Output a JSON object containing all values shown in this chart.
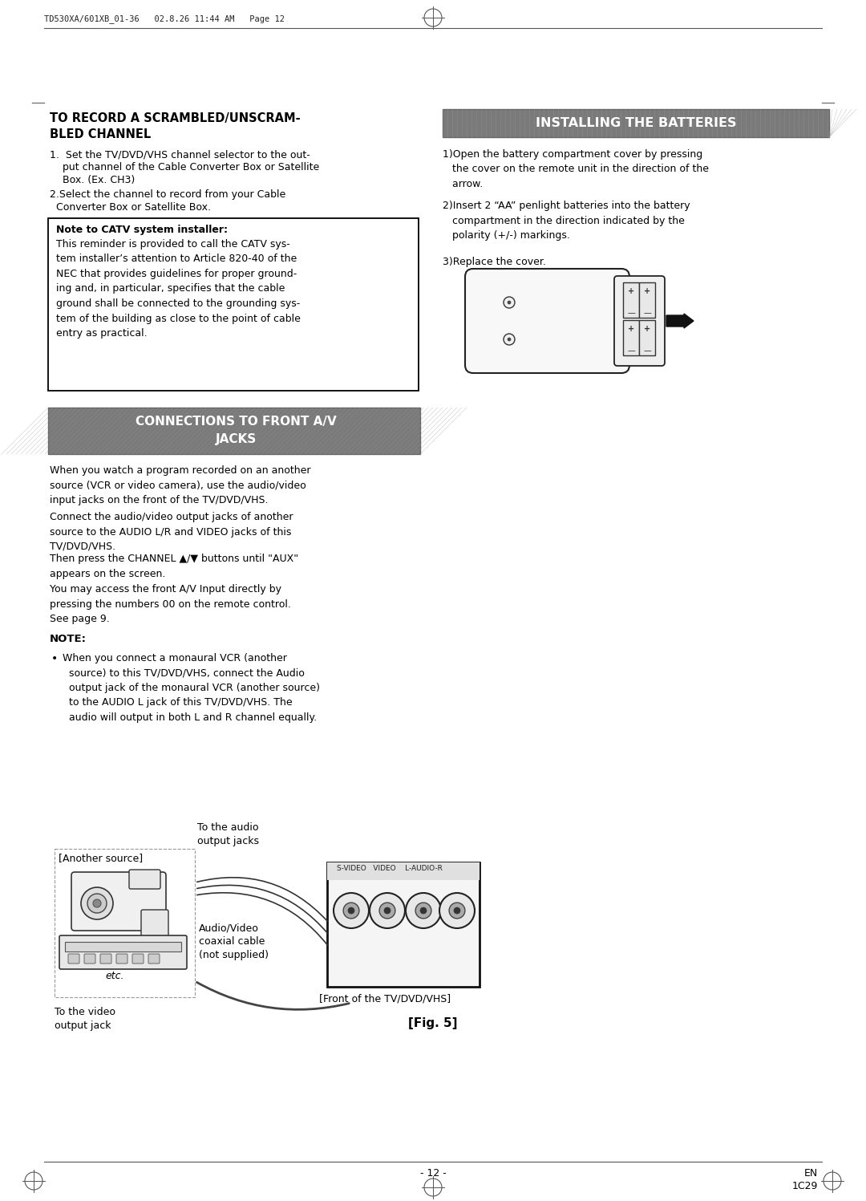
{
  "page_header": "TD530XA/601XB_01-36   02.8.26 11:44 AM   Page 12",
  "background_color": "#ffffff",
  "page_num": "- 12 -",
  "page_code": "EN\n1C29",
  "title_left_line1": "TO RECORD A SCRAMBLED/UNSCRAM-",
  "title_left_line2": "BLED CHANNEL",
  "title_right_text": "INSTALLING THE BATTERIES",
  "section2_title_line1": "CONNECTIONS TO FRONT A/V",
  "section2_title_line2": "JACKS",
  "note_box_title": "Note to CATV system installer:",
  "note_box_text": "This reminder is provided to call the CATV sys-\ntem installer’s attention to Article 820-40 of the\nNEC that provides guidelines for proper ground-\ning and, in particular, specifies that the cable\nground shall be connected to the grounding sys-\ntem of the building as close to the point of cable\nentry as practical.",
  "left_item1_line1": "1.  Set the TV/DVD/VHS channel selector to the out-",
  "left_item1_line2": "    put channel of the Cable Converter Box or Satellite",
  "left_item1_line3": "    Box. (Ex. CH3)",
  "left_item2_line1": "2.Select the channel to record from your Cable",
  "left_item2_line2": "  Converter Box or Satellite Box.",
  "right_item1": "1)Open the battery compartment cover by pressing\n   the cover on the remote unit in the direction of the\n   arrow.",
  "right_item2": "2)Insert 2 “AA” penlight batteries into the battery\n   compartment in the direction indicated by the\n   polarity (+/-) markings.",
  "right_item3": "3)Replace the cover.",
  "conn_text1": "When you watch a program recorded on an another\nsource (VCR or video camera), use the audio/video\ninput jacks on the front of the TV/DVD/VHS.",
  "conn_text2": "Connect the audio/video output jacks of another\nsource to the AUDIO L/R and VIDEO jacks of this\nTV/DVD/VHS.",
  "conn_text3": "Then press the CHANNEL ▲/▼ buttons until \"AUX\"\nappears on the screen.",
  "conn_text4": "You may access the front A/V Input directly by\npressing the numbers 00 on the remote control.\nSee page 9.",
  "note_title": "NOTE:",
  "note_bullet": "When you connect a monaural VCR (another\n  source) to this TV/DVD/VHS, connect the Audio\n  output jack of the monaural VCR (another source)\n  to the AUDIO L jack of this TV/DVD/VHS. The\n  audio will output in both L and R channel equally.",
  "fig_caption": "[Fig. 5]",
  "label_to_audio": "To the audio\noutput jacks",
  "label_another_source": "[Another source]",
  "label_audio_video": "Audio/Video\ncoaxial cable\n(not supplied)",
  "label_front_tv": "[Front of the TV/DVD/VHS]",
  "label_to_video": "To the video\noutput jack",
  "label_etc": "etc."
}
